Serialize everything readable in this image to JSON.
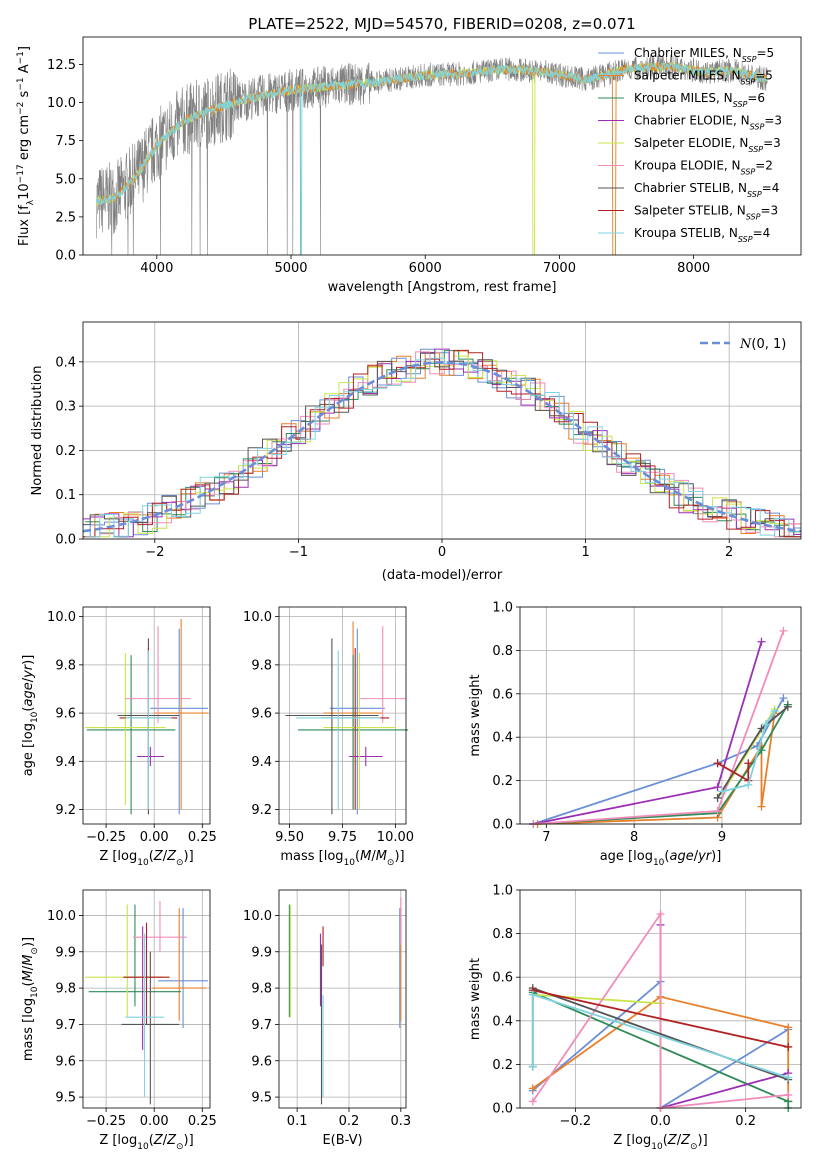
{
  "colors": [
    "#6a8fd8",
    "#e8802a",
    "#2e8b57",
    "#9b30b5",
    "#c8e64a",
    "#f28cba",
    "#555555",
    "#b22222",
    "#7fd3e0"
  ],
  "chart_data": [
    {
      "id": "spectrum",
      "type": "line",
      "title": "PLATE=2522, MJD=54570, FIBERID=0208, z=0.071",
      "xlabel": "wavelength [Angstrom, rest frame]",
      "ylabel": "Flux [f_λ 10^-17 erg cm^-2 s^-1 A^-1]",
      "xlim": [
        3450,
        8800
      ],
      "ylim": [
        0,
        14.3
      ],
      "xticks": [
        4000,
        5000,
        6000,
        7000,
        8000
      ],
      "yticks": [
        0.0,
        2.5,
        5.0,
        7.5,
        10.0,
        12.5
      ],
      "grid": false,
      "legend": {
        "placement": "top-right",
        "entries": [
          "Chabrier MILES, N_SSP=5",
          "Salpeter MILES, N_SSP=5",
          "Kroupa MILES, N_SSP=6",
          "Chabrier ELODIE, N_SSP=3",
          "Salpeter ELODIE, N_SSP=3",
          "Kroupa ELODIE, N_SSP=2",
          "Chabrier STELIB, N_SSP=4",
          "Salpeter STELIB, N_SSP=3",
          "Kroupa STELIB, N_SSP=4"
        ]
      },
      "data_envelope": {
        "x": [
          3550,
          3700,
          3850,
          4000,
          4200,
          4500,
          4800,
          5000,
          5300,
          5600,
          6000,
          6300,
          6600,
          6900,
          7200,
          7500,
          7800,
          8100,
          8300,
          8550
        ],
        "y": [
          3.5,
          3.8,
          5.2,
          7.2,
          8.8,
          9.8,
          10.5,
          10.8,
          11.1,
          11.3,
          11.8,
          11.9,
          12.2,
          12.0,
          11.5,
          12.2,
          12.4,
          12.0,
          12.1,
          11.5
        ]
      }
    },
    {
      "id": "residuals",
      "type": "histogram",
      "xlabel": "(data-model)/error",
      "ylabel": "Normed distribution",
      "xlim": [
        -2.5,
        2.5
      ],
      "ylim": [
        0,
        0.49
      ],
      "xticks": [
        -2,
        -1,
        0,
        1,
        2
      ],
      "yticks": [
        0.0,
        0.1,
        0.2,
        0.3,
        0.4
      ],
      "grid": true,
      "legend": {
        "placement": "top-right",
        "entries": [
          "N(0,1)"
        ]
      },
      "reference_curve": {
        "name": "N(0,1)",
        "mean": 0,
        "sigma": 1
      }
    },
    {
      "id": "age_vs_Z",
      "type": "errorbar",
      "xlabel": "Z [log10(Z/Z_sun)]",
      "ylabel": "age  [log10(age/yr)]",
      "xlim": [
        -0.37,
        0.29
      ],
      "ylim": [
        9.14,
        10.04
      ],
      "xticks": [
        -0.25,
        0.0,
        0.25
      ],
      "yticks": [
        9.2,
        9.4,
        9.6,
        9.8,
        10.0
      ],
      "grid": true,
      "points": [
        {
          "x": 0.13,
          "y": 9.62,
          "xerr": 0.15,
          "y_range": [
            9.18,
            9.95
          ]
        },
        {
          "x": 0.14,
          "y": 9.6,
          "xerr": 0.14,
          "y_range": [
            9.2,
            9.99
          ]
        },
        {
          "x": -0.12,
          "y": 9.53,
          "xerr": 0.23,
          "y_range": [
            9.18,
            9.84
          ]
        },
        {
          "x": -0.02,
          "y": 9.42,
          "xerr": 0.07,
          "y_range": [
            9.38,
            9.46
          ]
        },
        {
          "x": -0.15,
          "y": 9.54,
          "xerr": 0.21,
          "y_range": [
            9.22,
            9.85
          ]
        },
        {
          "x": 0.02,
          "y": 9.66,
          "xerr": 0.17,
          "y_range": [
            9.56,
            9.96
          ]
        },
        {
          "x": -0.03,
          "y": 9.59,
          "xerr": 0.16,
          "y_range": [
            9.18,
            9.91
          ]
        },
        {
          "x": -0.03,
          "y": 9.58,
          "xerr": 0.15,
          "y_range": [
            9.2,
            9.87
          ]
        },
        {
          "x": -0.03,
          "y": 9.58,
          "xerr": 0.12,
          "y_range": [
            9.2,
            9.86
          ]
        }
      ]
    },
    {
      "id": "age_vs_mass",
      "type": "errorbar",
      "xlabel": "mass [log10(M/M_sun)]",
      "ylabel": "",
      "xlim": [
        9.45,
        10.05
      ],
      "ylim": [
        9.14,
        10.04
      ],
      "xticks": [
        9.5,
        9.75,
        10.0
      ],
      "yticks": [
        9.2,
        9.4,
        9.6,
        9.8,
        10.0
      ],
      "grid": true,
      "points": [
        {
          "x": 9.82,
          "y": 9.62,
          "xerr": 0.13,
          "y_range": [
            9.18,
            9.95
          ]
        },
        {
          "x": 9.8,
          "y": 9.6,
          "xerr": 0.14,
          "y_range": [
            9.2,
            9.98
          ]
        },
        {
          "x": 9.8,
          "y": 9.53,
          "xerr": 0.26,
          "y_range": [
            9.2,
            9.84
          ]
        },
        {
          "x": 9.86,
          "y": 9.42,
          "xerr": 0.08,
          "y_range": [
            9.38,
            9.46
          ]
        },
        {
          "x": 9.83,
          "y": 9.54,
          "xerr": 0.17,
          "y_range": [
            9.2,
            9.85
          ]
        },
        {
          "x": 9.94,
          "y": 9.66,
          "xerr": 0.11,
          "y_range": [
            9.56,
            9.96
          ]
        },
        {
          "x": 9.7,
          "y": 9.59,
          "xerr": 0.22,
          "y_range": [
            9.18,
            9.91
          ]
        },
        {
          "x": 9.81,
          "y": 9.58,
          "xerr": 0.16,
          "y_range": [
            9.2,
            9.87
          ]
        },
        {
          "x": 9.73,
          "y": 9.58,
          "xerr": 0.2,
          "y_range": [
            9.2,
            9.86
          ]
        }
      ]
    },
    {
      "id": "weight_vs_age",
      "type": "line",
      "xlabel": "age  [log10(age/yr)]",
      "ylabel": "mass weight",
      "xlim": [
        6.7,
        9.9
      ],
      "ylim": [
        0,
        1.0
      ],
      "xticks": [
        7,
        8,
        9
      ],
      "yticks": [
        0.0,
        0.2,
        0.4,
        0.6,
        0.8,
        1.0
      ],
      "grid": true,
      "series": [
        {
          "x": [
            6.85,
            8.95,
            9.4,
            9.7
          ],
          "y": [
            0.0,
            0.28,
            0.36,
            0.58
          ]
        },
        {
          "x": [
            6.9,
            8.95,
            9.45,
            9.45,
            9.6
          ],
          "y": [
            0.0,
            0.03,
            0.36,
            0.08,
            0.51
          ]
        },
        {
          "x": [
            6.85,
            8.95,
            9.45,
            9.75
          ],
          "y": [
            0.0,
            0.05,
            0.34,
            0.55
          ]
        },
        {
          "x": [
            6.85,
            8.95,
            9.45
          ],
          "y": [
            0.0,
            0.17,
            0.84
          ]
        },
        {
          "x": [
            9.0,
            9.6
          ],
          "y": [
            0.14,
            0.53
          ]
        },
        {
          "x": [
            6.85,
            8.95,
            9.7
          ],
          "y": [
            0.0,
            0.06,
            0.89
          ]
        },
        {
          "x": [
            8.95,
            9.45,
            9.75
          ],
          "y": [
            0.12,
            0.44,
            0.54
          ]
        },
        {
          "x": [
            8.95,
            9.3,
            9.3
          ],
          "y": [
            0.28,
            0.2,
            0.28
          ]
        },
        {
          "x": [
            9.0,
            9.3,
            9.5,
            9.6
          ],
          "y": [
            0.15,
            0.18,
            0.46,
            0.52
          ]
        }
      ]
    },
    {
      "id": "mass_vs_Z",
      "type": "errorbar",
      "xlabel": "Z [log10(Z/Z_sun)]",
      "ylabel": "mass [log10(M/M_sun)]",
      "xlim": [
        -0.37,
        0.29
      ],
      "ylim": [
        9.47,
        10.07
      ],
      "xticks": [
        -0.25,
        0.0,
        0.25
      ],
      "yticks": [
        9.5,
        9.6,
        9.7,
        9.8,
        9.9,
        10.0
      ],
      "grid": true,
      "points": [
        {
          "x": 0.15,
          "y": 9.82,
          "xerr": 0.13,
          "y_range": [
            9.69,
            10.02
          ]
        },
        {
          "x": 0.13,
          "y": 9.8,
          "xerr": 0.14,
          "y_range": [
            9.71,
            10.02
          ]
        },
        {
          "x": -0.1,
          "y": 9.79,
          "xerr": 0.24,
          "y_range": [
            9.75,
            10.03
          ]
        },
        {
          "x": -0.06,
          "y": 9.83,
          "xerr": 0.1,
          "y_range": [
            9.63,
            9.97
          ]
        },
        {
          "x": -0.14,
          "y": 9.83,
          "xerr": 0.22,
          "y_range": [
            9.72,
            10.03
          ]
        },
        {
          "x": 0.03,
          "y": 9.94,
          "xerr": 0.14,
          "y_range": [
            9.9,
            10.04
          ]
        },
        {
          "x": -0.02,
          "y": 9.7,
          "xerr": 0.15,
          "y_range": [
            9.48,
            9.9
          ]
        },
        {
          "x": -0.04,
          "y": 9.83,
          "xerr": 0.12,
          "y_range": [
            9.7,
            9.98
          ]
        },
        {
          "x": -0.05,
          "y": 9.72,
          "xerr": 0.1,
          "y_range": [
            9.5,
            9.95
          ]
        }
      ]
    },
    {
      "id": "mass_vs_ebv",
      "type": "errorbar",
      "xlabel": "E(B-V)",
      "ylabel": "",
      "xlim": [
        0.065,
        0.31
      ],
      "ylim": [
        9.47,
        10.07
      ],
      "xticks": [
        0.1,
        0.2,
        0.3
      ],
      "yticks": [
        9.5,
        9.6,
        9.7,
        9.8,
        9.9,
        10.0
      ],
      "grid": true,
      "points": [
        {
          "x": 0.298,
          "y": 9.82,
          "y_range": [
            9.69,
            10.02
          ]
        },
        {
          "x": 0.3,
          "y": 9.8,
          "y_range": [
            9.71,
            10.02
          ]
        },
        {
          "x": 0.085,
          "y": 9.79,
          "y_range": [
            9.72,
            10.03
          ]
        },
        {
          "x": 0.145,
          "y": 9.83,
          "y_range": [
            9.75,
            9.95
          ]
        },
        {
          "x": 0.087,
          "y": 9.83,
          "y_range": [
            9.72,
            10.03
          ]
        },
        {
          "x": 0.3,
          "y": 9.94,
          "y_range": [
            9.92,
            10.05
          ]
        },
        {
          "x": 0.147,
          "y": 9.7,
          "y_range": [
            9.48,
            9.92
          ]
        },
        {
          "x": 0.15,
          "y": 9.9,
          "y_range": [
            9.86,
            9.97
          ]
        },
        {
          "x": 0.15,
          "y": 9.63,
          "y_range": [
            9.5,
            9.78
          ]
        }
      ]
    },
    {
      "id": "weight_vs_Z",
      "type": "line",
      "xlabel": "Z [log10(Z/Z_sun)]",
      "ylabel": "mass weight",
      "xlim": [
        -0.33,
        0.33
      ],
      "ylim": [
        0,
        1.0
      ],
      "xticks": [
        -0.2,
        0.0,
        0.2
      ],
      "yticks": [
        0.0,
        0.2,
        0.4,
        0.6,
        0.8,
        1.0
      ],
      "grid": true,
      "series": [
        {
          "x": [
            -0.3,
            0.0,
            0.0,
            0.3
          ],
          "y": [
            0.08,
            0.58,
            0.0,
            0.36
          ]
        },
        {
          "x": [
            -0.3,
            0.0,
            0.3,
            0.3
          ],
          "y": [
            0.09,
            0.51,
            0.37,
            0.03
          ]
        },
        {
          "x": [
            -0.3,
            0.3,
            0.3
          ],
          "y": [
            0.53,
            0.03,
            0.0
          ]
        },
        {
          "x": [
            0.0,
            0.0,
            0.3
          ],
          "y": [
            0.84,
            0.0,
            0.16
          ]
        },
        {
          "x": [
            -0.3,
            0.0,
            0.0
          ],
          "y": [
            0.52,
            0.48,
            0.0
          ]
        },
        {
          "x": [
            -0.3,
            0.0,
            0.0,
            0.3
          ],
          "y": [
            0.03,
            0.89,
            0.0,
            0.06
          ]
        },
        {
          "x": [
            -0.3,
            -0.3,
            0.3
          ],
          "y": [
            0.19,
            0.55,
            0.13
          ]
        },
        {
          "x": [
            -0.3,
            0.3
          ],
          "y": [
            0.54,
            0.28
          ]
        },
        {
          "x": [
            -0.3,
            -0.3,
            0.3
          ],
          "y": [
            0.19,
            0.52,
            0.14
          ]
        }
      ]
    }
  ]
}
